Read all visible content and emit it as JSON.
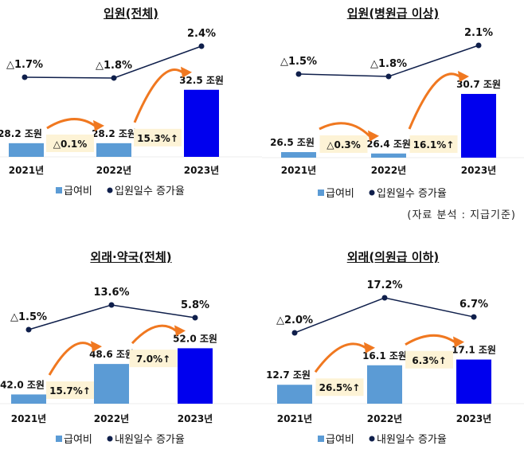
{
  "colors": {
    "bar_prev": "#5b9bd5",
    "bar_latest": "#0000ee",
    "line": "#0f1f4b",
    "arrow": "#f07820",
    "growth_box": "#fdf3d6"
  },
  "source_note": "(자료 분석 : 지급기준)",
  "chart_data": [
    {
      "type": "bar+line",
      "title": "입원(전체)",
      "categories": [
        "2021년",
        "2022년",
        "2023년"
      ],
      "bar_series": {
        "name": "급여비",
        "values": [
          28.2,
          28.2,
          32.5
        ],
        "labels": [
          "28.2 조원",
          "28.2 조원",
          "32.5 조원"
        ]
      },
      "line_series": {
        "name": "입원일수 증가율",
        "values": [
          -1.7,
          -1.8,
          2.4
        ],
        "labels": [
          "△1.7%",
          "△1.8%",
          "2.4%"
        ]
      },
      "growth_labels": [
        "△0.1%",
        "15.3%↑"
      ],
      "legend": [
        "급여비",
        "입원일수 증가율"
      ],
      "legend_placement": "bottom"
    },
    {
      "type": "bar+line",
      "title": "입원(병원급 이상)",
      "categories": [
        "2021년",
        "2022년",
        "2023년"
      ],
      "bar_series": {
        "name": "급여비",
        "values": [
          26.5,
          26.4,
          30.7
        ],
        "labels": [
          "26.5 조원",
          "26.4 조원",
          "30.7 조원"
        ]
      },
      "line_series": {
        "name": "입원일수 증가율",
        "values": [
          -1.5,
          -1.8,
          2.1
        ],
        "labels": [
          "△1.5%",
          "△1.8%",
          "2.1%"
        ]
      },
      "growth_labels": [
        "△0.3%",
        "16.1%↑"
      ],
      "legend": [
        "급여비",
        "입원일수 증가율"
      ],
      "legend_placement": "bottom"
    },
    {
      "type": "bar+line",
      "title": "외래·약국(전체)",
      "categories": [
        "2021년",
        "2022년",
        "2023년"
      ],
      "bar_series": {
        "name": "급여비",
        "values": [
          42.0,
          48.6,
          52.0
        ],
        "labels": [
          "42.0 조원",
          "48.6 조원",
          "52.0 조원"
        ]
      },
      "line_series": {
        "name": "내원일수 증가율",
        "values": [
          -1.5,
          13.6,
          5.8
        ],
        "labels": [
          "△1.5%",
          "13.6%",
          "5.8%"
        ]
      },
      "growth_labels": [
        "15.7%↑",
        "7.0%↑"
      ],
      "legend": [
        "급여비",
        "내원일수 증가율"
      ],
      "legend_placement": "bottom"
    },
    {
      "type": "bar+line",
      "title": "외래(의원급 이하)",
      "categories": [
        "2021년",
        "2022년",
        "2023년"
      ],
      "bar_series": {
        "name": "급여비",
        "values": [
          12.7,
          16.1,
          17.1
        ],
        "labels": [
          "12.7 조원",
          "16.1 조원",
          "17.1 조원"
        ]
      },
      "line_series": {
        "name": "내원일수 증가율",
        "values": [
          -2.0,
          17.2,
          6.7
        ],
        "labels": [
          "△2.0%",
          "17.2%",
          "6.7%"
        ]
      },
      "growth_labels": [
        "26.5%↑",
        "6.3%↑"
      ],
      "legend": [
        "급여비",
        "내원일수 증가율"
      ],
      "legend_placement": "bottom"
    }
  ]
}
